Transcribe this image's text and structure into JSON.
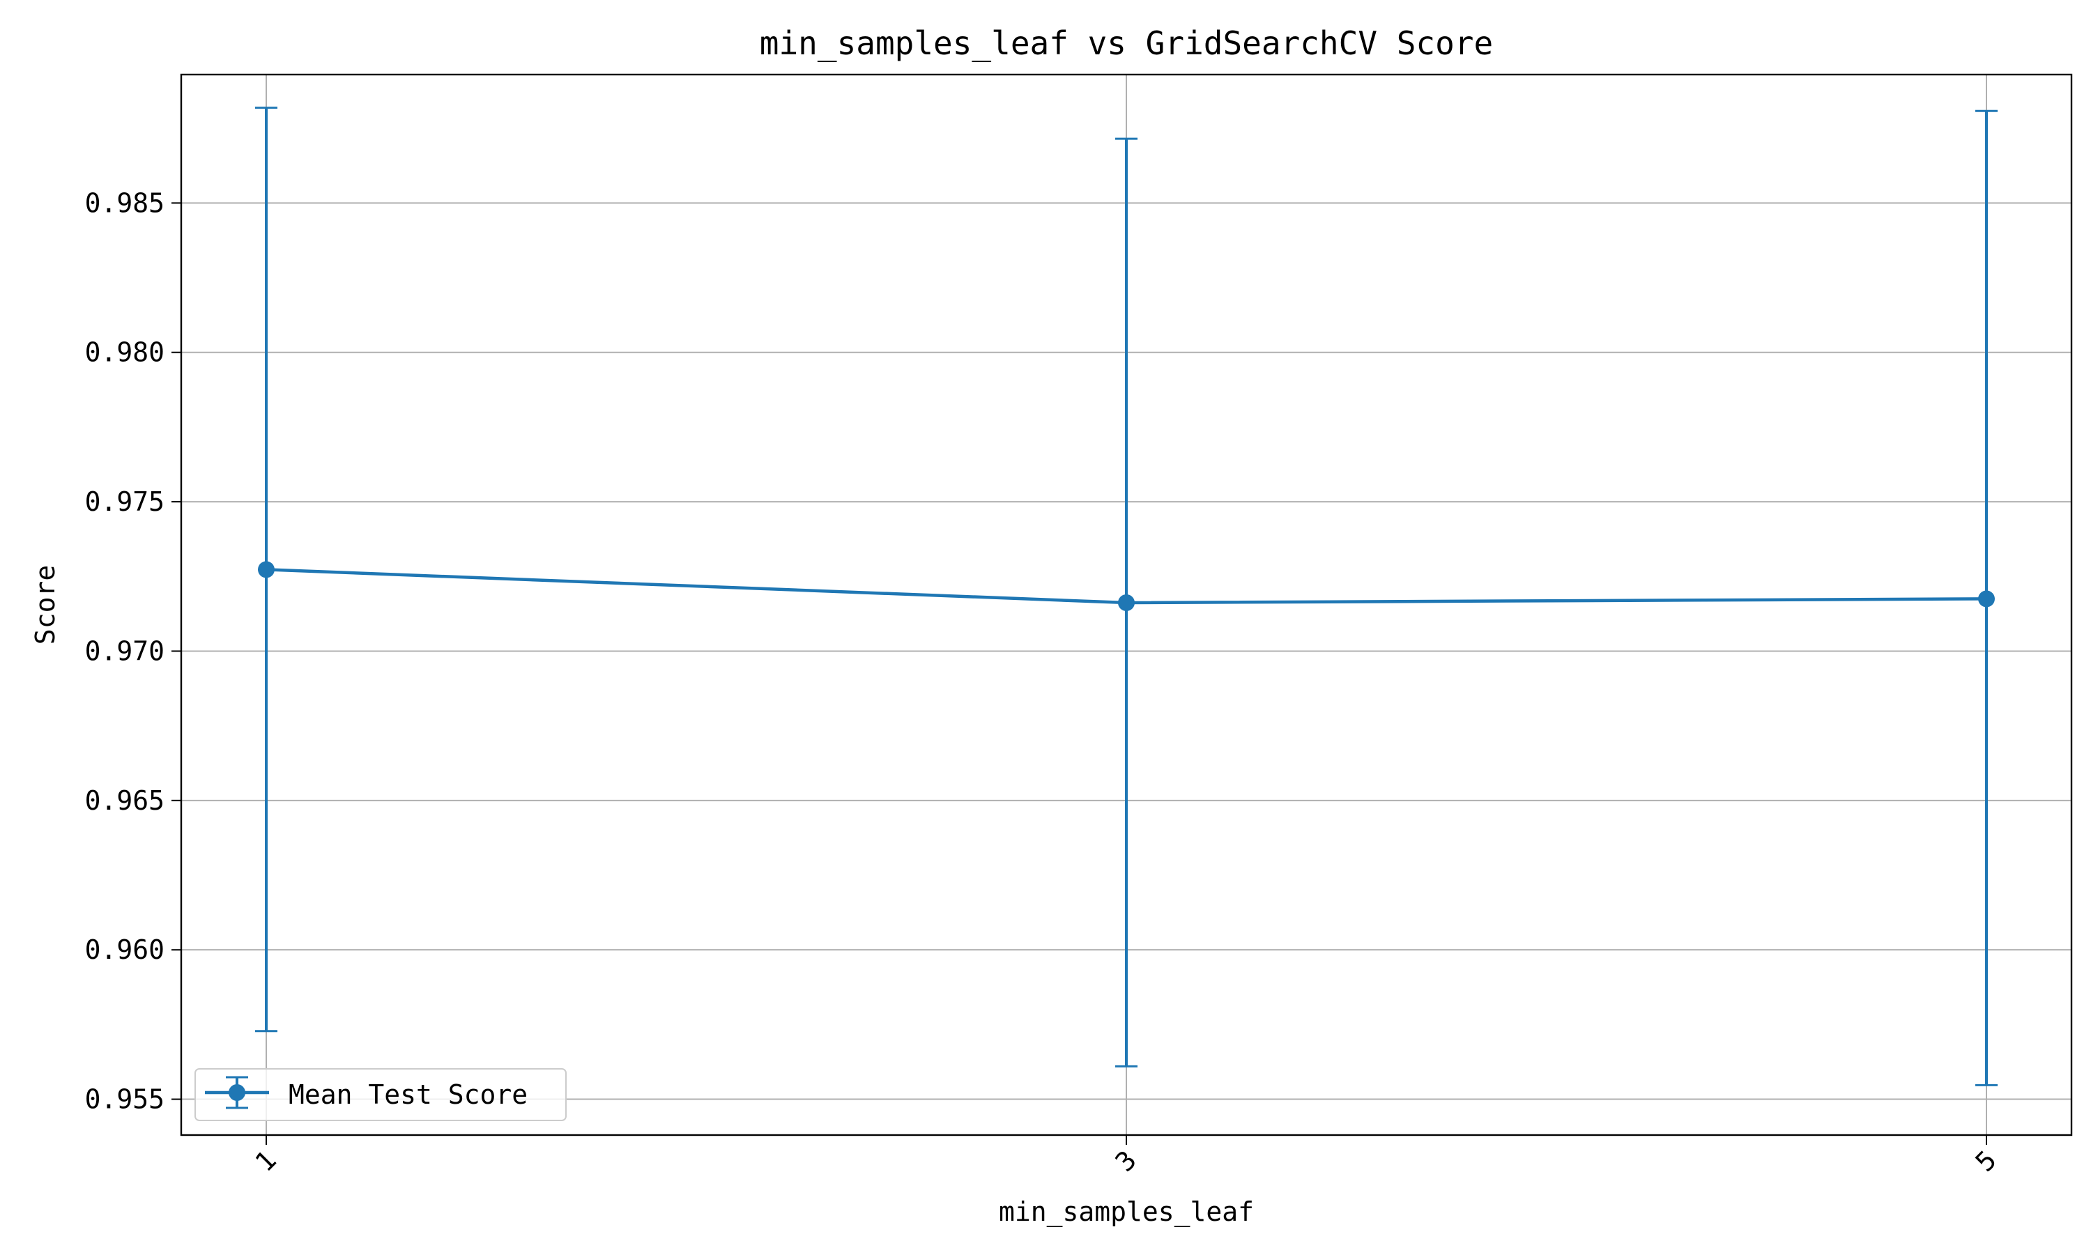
{
  "chart_data": {
    "type": "line",
    "title": "min_samples_leaf vs GridSearchCV Score",
    "xlabel": "min_samples_leaf",
    "ylabel": "Score",
    "categories": [
      "1",
      "3",
      "5"
    ],
    "series": [
      {
        "name": "Mean Test Score",
        "values": [
          0.97273,
          0.97162,
          0.97175
        ],
        "error_low": [
          0.95728,
          0.9561,
          0.95547
        ],
        "error_high": [
          0.98819,
          0.98715,
          0.98808
        ],
        "color": "#1f77b4",
        "marker": "circle",
        "error_bars": true
      }
    ],
    "y_ticks": [
      "0.955",
      "0.960",
      "0.965",
      "0.970",
      "0.975",
      "0.980",
      "0.985"
    ],
    "ylim": [
      0.9538,
      0.9893
    ],
    "grid": true,
    "legend_position": "lower-left",
    "x_tick_rotation_deg": 45
  }
}
